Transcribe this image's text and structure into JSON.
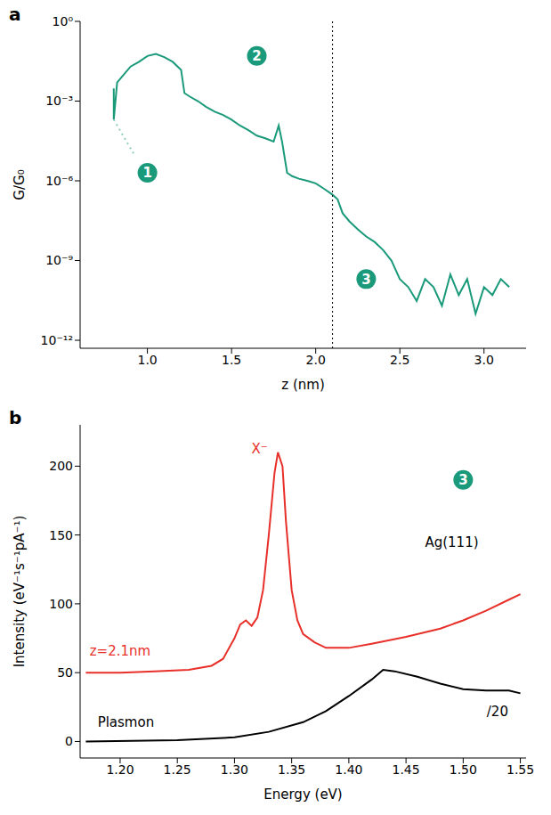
{
  "chart_data": [
    {
      "panel": "a",
      "type": "line",
      "x_label": "z (nm)",
      "y_label": "G/G₀",
      "log": "y",
      "xlim": [
        0.6,
        3.25
      ],
      "xticks": [
        {
          "value": 1,
          "label": "1.0"
        },
        {
          "value": 1.5,
          "label": "1.5"
        },
        {
          "value": 2,
          "label": "2.0"
        },
        {
          "value": 2.5,
          "label": "2.5"
        },
        {
          "value": 3,
          "label": "3.0"
        }
      ],
      "ylim": [
        5e-13,
        1
      ],
      "yticks": [
        {
          "value": 1,
          "label": "10⁰"
        },
        {
          "value": 0.001,
          "label": "10⁻³"
        },
        {
          "value": 1e-06,
          "label": "10⁻⁶"
        },
        {
          "value": 1e-09,
          "label": "10⁻⁹"
        },
        {
          "value": 1e-12,
          "label": "10⁻¹²"
        }
      ],
      "series": [
        {
          "color": "#1a9a7a",
          "line_style": "solid",
          "x": [
            0.8,
            0.8,
            0.82,
            0.86,
            0.9,
            0.95,
            1.0,
            1.05,
            1.1,
            1.15,
            1.2,
            1.22,
            1.25,
            1.3,
            1.35,
            1.4,
            1.45,
            1.5,
            1.55,
            1.6,
            1.65,
            1.7,
            1.75,
            1.78,
            1.8,
            1.83,
            1.86,
            1.9,
            1.95,
            2.0,
            2.05,
            2.1,
            2.13,
            2.16,
            2.2,
            2.25,
            2.3,
            2.35,
            2.4,
            2.45,
            2.5,
            2.55,
            2.6,
            2.65,
            2.7,
            2.75,
            2.8,
            2.85,
            2.9,
            2.95,
            3.0,
            3.05,
            3.1,
            3.15
          ],
          "values": [
            0.003,
            0.0002,
            0.005,
            0.01,
            0.02,
            0.03,
            0.05,
            0.06,
            0.045,
            0.03,
            0.015,
            0.002,
            0.0015,
            0.001,
            0.0006,
            0.0004,
            0.0003,
            0.0002,
            0.00012,
            8e-05,
            5e-05,
            4e-05,
            3e-05,
            0.00012,
            3e-05,
            2e-06,
            1.5e-06,
            1.2e-06,
            1e-06,
            8e-07,
            5e-07,
            3e-07,
            2e-07,
            6e-08,
            3e-08,
            1.5e-08,
            8e-09,
            5e-09,
            2.5e-09,
            1e-09,
            2e-10,
            1e-10,
            3e-11,
            2e-10,
            1e-10,
            2e-11,
            3e-10,
            5e-11,
            2e-10,
            1e-11,
            1e-10,
            5e-11,
            2e-10,
            1e-10
          ]
        },
        {
          "color": "#8fd0bd",
          "line_style": "dotted",
          "x": [
            0.8,
            0.92
          ],
          "values": [
            0.0002,
            1e-05
          ]
        }
      ],
      "annotations": [
        {
          "x": 2.1,
          "line_style": "dotted"
        },
        {
          "text": "1",
          "x": 1.0,
          "y": 2e-06,
          "marker": "circle",
          "color": "#1a9a7a"
        },
        {
          "text": "2",
          "x": 1.65,
          "y": 0.05,
          "marker": "circle",
          "color": "#1a9a7a"
        },
        {
          "text": "3",
          "x": 2.3,
          "y": 2e-10,
          "marker": "circle",
          "color": "#1a9a7a"
        }
      ]
    },
    {
      "panel": "b",
      "type": "line",
      "x_label": "Energy (eV)",
      "y_label": "Intensity (eV⁻¹s⁻¹pA⁻¹)",
      "xlim": [
        1.165,
        1.555
      ],
      "xticks": [
        {
          "value": 1.2,
          "label": "1.20"
        },
        {
          "value": 1.25,
          "label": "1.25"
        },
        {
          "value": 1.3,
          "label": "1.30"
        },
        {
          "value": 1.35,
          "label": "1.35"
        },
        {
          "value": 1.4,
          "label": "1.40"
        },
        {
          "value": 1.45,
          "label": "1.45"
        },
        {
          "value": 1.5,
          "label": "1.50"
        },
        {
          "value": 1.55,
          "label": "1.55"
        }
      ],
      "ylim": [
        -12,
        230
      ],
      "yticks": [
        0,
        50,
        100,
        150,
        200
      ],
      "series": [
        {
          "color": "#e8302a",
          "line_style": "solid",
          "x": [
            1.17,
            1.2,
            1.23,
            1.26,
            1.28,
            1.29,
            1.3,
            1.305,
            1.31,
            1.315,
            1.32,
            1.325,
            1.33,
            1.335,
            1.338,
            1.342,
            1.345,
            1.35,
            1.355,
            1.36,
            1.37,
            1.38,
            1.4,
            1.42,
            1.45,
            1.48,
            1.5,
            1.52,
            1.54,
            1.55
          ],
          "values": [
            50,
            50,
            51,
            52,
            55,
            60,
            75,
            85,
            88,
            84,
            90,
            110,
            150,
            195,
            210,
            200,
            160,
            110,
            88,
            78,
            72,
            68,
            68,
            71,
            76,
            82,
            88,
            95,
            103,
            107
          ]
        },
        {
          "color": "#000000",
          "line_style": "solid",
          "x": [
            1.17,
            1.25,
            1.3,
            1.33,
            1.36,
            1.38,
            1.4,
            1.42,
            1.43,
            1.44,
            1.46,
            1.48,
            1.5,
            1.52,
            1.54,
            1.55
          ],
          "values": [
            0,
            1,
            3,
            7,
            14,
            22,
            33,
            45,
            52,
            51,
            47,
            42,
            38,
            37,
            37,
            35
          ]
        }
      ],
      "annotations": [
        {
          "text": "X⁻",
          "x": 1.322,
          "y": 213,
          "color": "#e8302a"
        },
        {
          "text": "z=2.1nm",
          "x": 1.2,
          "y": 66,
          "color": "#e8302a"
        },
        {
          "text": "Plasmon",
          "x": 1.205,
          "y": 14,
          "color": "#000000"
        },
        {
          "text": "/20",
          "x": 1.53,
          "y": 22,
          "color": "#000000"
        },
        {
          "text": "3",
          "x": 1.5,
          "y": 190,
          "marker": "circle",
          "color": "#1a9a7a"
        },
        {
          "text": "Ag(111)",
          "x": 1.49,
          "y": 145,
          "color": "#000000"
        }
      ]
    }
  ]
}
